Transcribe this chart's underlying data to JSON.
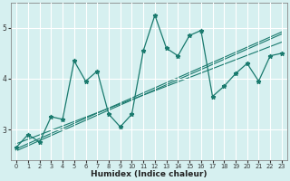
{
  "x": [
    0,
    1,
    2,
    3,
    4,
    5,
    6,
    7,
    8,
    9,
    10,
    11,
    12,
    13,
    14,
    15,
    16,
    17,
    18,
    19,
    20,
    21,
    22,
    23
  ],
  "y": [
    2.65,
    2.9,
    2.75,
    3.25,
    3.2,
    4.35,
    3.95,
    4.15,
    3.3,
    3.05,
    3.3,
    4.55,
    5.25,
    4.6,
    4.45,
    4.85,
    4.95,
    3.65,
    3.85,
    4.1,
    4.3,
    3.95,
    4.45,
    4.5
  ],
  "trend1_x": [
    0,
    23
  ],
  "trend1_y": [
    2.58,
    4.88
  ],
  "trend2_x": [
    0,
    23
  ],
  "trend2_y": [
    2.72,
    4.72
  ],
  "trend3_x": [
    0,
    23
  ],
  "trend3_y": [
    2.62,
    4.92
  ],
  "line_color": "#1a7a6e",
  "bg_color": "#d6f0f0",
  "grid_color": "#ffffff",
  "xlabel": "Humidex (Indice chaleur)",
  "ylim": [
    2.4,
    5.5
  ],
  "xlim": [
    -0.5,
    23.5
  ],
  "yticks": [
    3,
    4,
    5
  ],
  "xticks": [
    0,
    1,
    2,
    3,
    4,
    5,
    6,
    7,
    8,
    9,
    10,
    11,
    12,
    13,
    14,
    15,
    16,
    17,
    18,
    19,
    20,
    21,
    22,
    23
  ]
}
